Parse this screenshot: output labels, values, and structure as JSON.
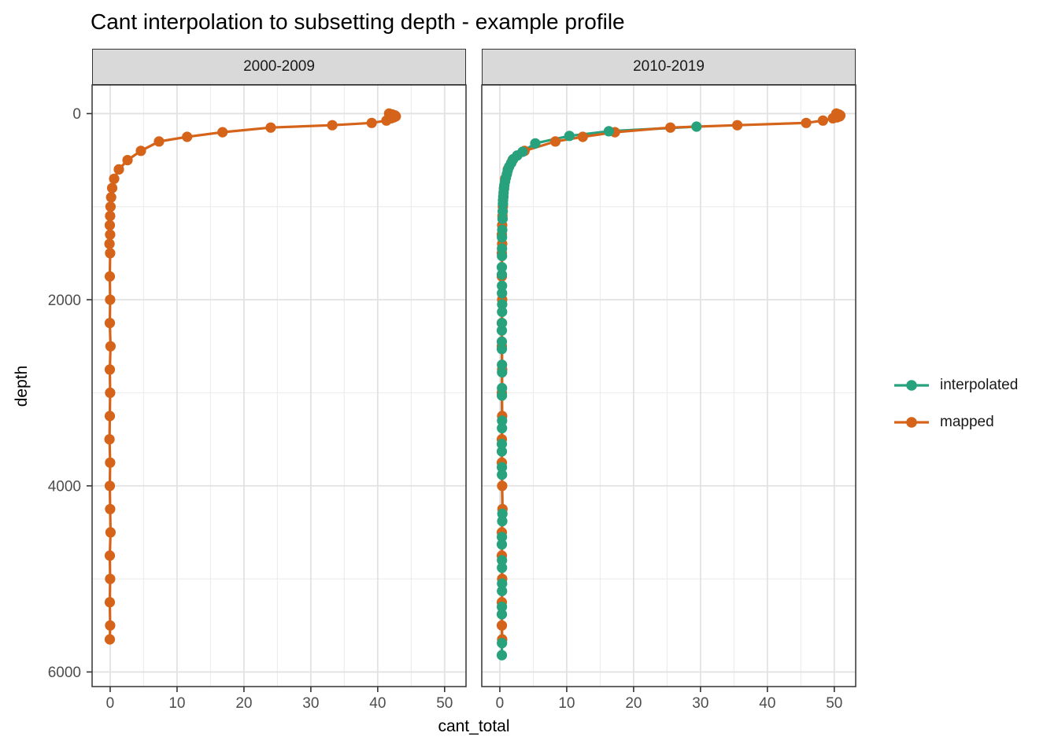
{
  "chart_data": {
    "type": "scatter",
    "title": "Cant interpolation to subsetting depth - example profile",
    "xlabel": "cant_total",
    "ylabel": "depth",
    "x_ticks": [
      0,
      10,
      20,
      30,
      40,
      50
    ],
    "x_minor_ticks": [
      5,
      15,
      25,
      35,
      45
    ],
    "y_ticks": [
      0,
      2000,
      4000,
      6000
    ],
    "y_minor_ticks": [
      1000,
      3000,
      5000
    ],
    "x_range": [
      -2.7,
      53.2
    ],
    "y_range": [
      -308,
      6157
    ],
    "y_axis_reversed": true,
    "grid": true,
    "legend_position": "right",
    "style": {
      "panel_background": "#FFFFFF",
      "strip_fill": "#D9D9D9",
      "panel_border": "#333333",
      "grid_major": "#E2E2E2",
      "grid_minor": "#EDEDED",
      "tick_mark": "#333333",
      "tick_label_color": "#4D4D4D"
    },
    "legend": [
      {
        "label": "interpolated",
        "color": "#28A17D"
      },
      {
        "label": "mapped",
        "color": "#D5641A"
      }
    ],
    "facets": [
      {
        "label": "2000-2009",
        "series": [
          {
            "name": "mapped",
            "color": "#D5641A",
            "points": [
              [
                41.7,
                0
              ],
              [
                42.2,
                10
              ],
              [
                42.6,
                20
              ],
              [
                42.7,
                30
              ],
              [
                42.4,
                40
              ],
              [
                42.0,
                50
              ],
              [
                41.3,
                75
              ],
              [
                39.1,
                100
              ],
              [
                33.2,
                125
              ],
              [
                24.0,
                150
              ],
              [
                16.8,
                200
              ],
              [
                11.5,
                250
              ],
              [
                7.3,
                300
              ],
              [
                4.6,
                400
              ],
              [
                2.6,
                500
              ],
              [
                1.3,
                600
              ],
              [
                0.6,
                700
              ],
              [
                0.3,
                800
              ],
              [
                0.15,
                900
              ],
              [
                0.05,
                1000
              ],
              [
                0.0,
                1100
              ],
              [
                -0.05,
                1200
              ],
              [
                0.0,
                1300
              ],
              [
                -0.1,
                1400
              ],
              [
                0.0,
                1500
              ],
              [
                -0.05,
                1750
              ],
              [
                0.0,
                2000
              ],
              [
                -0.05,
                2250
              ],
              [
                0.05,
                2500
              ],
              [
                -0.05,
                2750
              ],
              [
                0.0,
                3000
              ],
              [
                -0.05,
                3250
              ],
              [
                -0.1,
                3500
              ],
              [
                0.0,
                3750
              ],
              [
                -0.05,
                4000
              ],
              [
                0.0,
                4250
              ],
              [
                0.05,
                4500
              ],
              [
                -0.05,
                4750
              ],
              [
                0.0,
                5000
              ],
              [
                -0.05,
                5250
              ],
              [
                0.0,
                5500
              ],
              [
                -0.05,
                5650
              ]
            ]
          }
        ]
      },
      {
        "label": "2010-2019",
        "series": [
          {
            "name": "mapped",
            "color": "#D5641A",
            "points": [
              [
                50.3,
                0
              ],
              [
                50.7,
                10
              ],
              [
                50.9,
                20
              ],
              [
                50.8,
                30
              ],
              [
                50.4,
                40
              ],
              [
                49.8,
                50
              ],
              [
                48.3,
                75
              ],
              [
                45.8,
                100
              ],
              [
                35.5,
                125
              ],
              [
                25.5,
                150
              ],
              [
                17.2,
                200
              ],
              [
                12.4,
                250
              ],
              [
                8.3,
                300
              ],
              [
                3.7,
                400
              ],
              [
                1.9,
                500
              ],
              [
                1.2,
                600
              ],
              [
                0.8,
                700
              ],
              [
                0.62,
                800
              ],
              [
                0.52,
                900
              ],
              [
                0.45,
                1000
              ],
              [
                0.4,
                1100
              ],
              [
                0.35,
                1200
              ],
              [
                0.3,
                1300
              ],
              [
                0.35,
                1400
              ],
              [
                0.3,
                1500
              ],
              [
                0.3,
                1750
              ],
              [
                0.35,
                2000
              ],
              [
                0.3,
                2250
              ],
              [
                0.3,
                2500
              ],
              [
                0.35,
                2750
              ],
              [
                0.3,
                3000
              ],
              [
                0.35,
                3250
              ],
              [
                0.3,
                3500
              ],
              [
                0.3,
                3750
              ],
              [
                0.35,
                4000
              ],
              [
                0.4,
                4250
              ],
              [
                0.3,
                4500
              ],
              [
                0.3,
                4750
              ],
              [
                0.35,
                5000
              ],
              [
                0.3,
                5250
              ],
              [
                0.3,
                5500
              ],
              [
                0.35,
                5650
              ]
            ]
          },
          {
            "name": "interpolated",
            "color": "#28A17D",
            "points": [
              [
                29.4,
                140
              ],
              [
                16.3,
                190
              ],
              [
                10.4,
                240
              ],
              [
                5.3,
                320
              ],
              [
                3.4,
                410
              ],
              [
                2.6,
                450
              ],
              [
                2.0,
                490
              ],
              [
                1.7,
                530
              ],
              [
                1.4,
                570
              ],
              [
                1.18,
                610
              ],
              [
                1.05,
                650
              ],
              [
                0.9,
                690
              ],
              [
                0.78,
                730
              ],
              [
                0.68,
                770
              ],
              [
                0.62,
                810
              ],
              [
                0.56,
                850
              ],
              [
                0.52,
                890
              ],
              [
                0.48,
                930
              ],
              [
                0.46,
                970
              ],
              [
                0.43,
                1050
              ],
              [
                0.41,
                1130
              ],
              [
                0.36,
                1250
              ],
              [
                0.33,
                1330
              ],
              [
                0.33,
                1450
              ],
              [
                0.32,
                1530
              ],
              [
                0.3,
                1650
              ],
              [
                0.3,
                1730
              ],
              [
                0.32,
                1850
              ],
              [
                0.33,
                1930
              ],
              [
                0.35,
                2050
              ],
              [
                0.34,
                2130
              ],
              [
                0.31,
                2250
              ],
              [
                0.3,
                2330
              ],
              [
                0.3,
                2450
              ],
              [
                0.3,
                2530
              ],
              [
                0.33,
                2700
              ],
              [
                0.34,
                2780
              ],
              [
                0.32,
                2950
              ],
              [
                0.31,
                3030
              ],
              [
                0.34,
                3300
              ],
              [
                0.33,
                3380
              ],
              [
                0.3,
                3550
              ],
              [
                0.3,
                3630
              ],
              [
                0.31,
                3800
              ],
              [
                0.32,
                3880
              ],
              [
                0.38,
                4300
              ],
              [
                0.36,
                4380
              ],
              [
                0.31,
                4550
              ],
              [
                0.3,
                4630
              ],
              [
                0.32,
                4800
              ],
              [
                0.33,
                4880
              ],
              [
                0.34,
                5050
              ],
              [
                0.33,
                5130
              ],
              [
                0.31,
                5300
              ],
              [
                0.3,
                5380
              ],
              [
                0.33,
                5690
              ],
              [
                0.3,
                5820
              ]
            ]
          }
        ]
      }
    ]
  }
}
